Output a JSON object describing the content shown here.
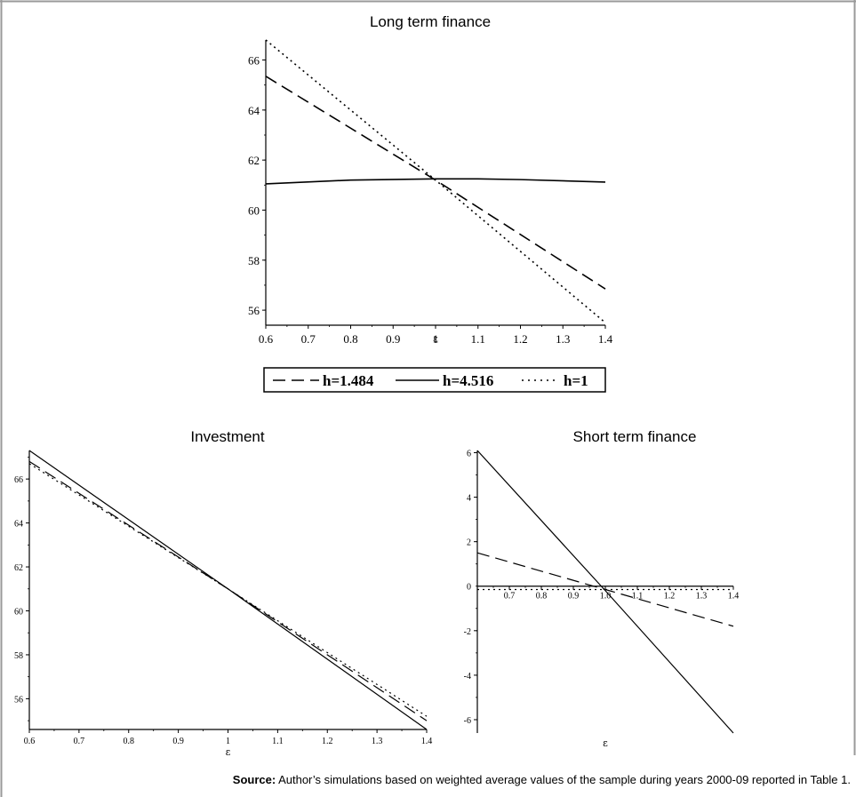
{
  "chart_data": [
    {
      "type": "line",
      "title": "Long term finance",
      "xlabel": "ε",
      "xlim": [
        0.6,
        1.4
      ],
      "ylim": [
        55.4,
        66.8
      ],
      "xticks": [
        0.6,
        0.7,
        0.8,
        0.9,
        1.0,
        1.1,
        1.2,
        1.3,
        1.4
      ],
      "xtick_labels": [
        "0.6",
        "0.7",
        "0.8",
        "0.9",
        "1",
        "1.1",
        "1.2",
        "1.3",
        "1.4"
      ],
      "yticks": [
        56,
        58,
        60,
        62,
        64,
        66
      ],
      "ytick_labels": [
        "56",
        "58",
        "60",
        "62",
        "64",
        "66"
      ],
      "series": [
        {
          "name": "h=1.484",
          "style": "dashed",
          "x": [
            0.6,
            1.0,
            1.4
          ],
          "y": [
            65.35,
            61.2,
            56.85
          ]
        },
        {
          "name": "h=4.516",
          "style": "solid",
          "x": [
            0.6,
            0.8,
            1.0,
            1.1,
            1.2,
            1.4
          ],
          "y": [
            61.05,
            61.2,
            61.25,
            61.25,
            61.22,
            61.12
          ]
        },
        {
          "name": "h=1",
          "style": "dotted",
          "x": [
            0.6,
            1.0,
            1.4
          ],
          "y": [
            66.8,
            61.2,
            55.5
          ]
        }
      ],
      "legend": {
        "position": "bottom",
        "entries": [
          "h=1.484",
          "h=4.516",
          "h=1"
        ]
      }
    },
    {
      "type": "line",
      "title": "Investment",
      "xlabel": "ε",
      "xlim": [
        0.6,
        1.4
      ],
      "ylim": [
        54.6,
        67.3
      ],
      "xticks": [
        0.6,
        0.7,
        0.8,
        0.9,
        1.0,
        1.1,
        1.2,
        1.3,
        1.4
      ],
      "xtick_labels": [
        "0.6",
        "0.7",
        "0.8",
        "0.9",
        "1",
        "1.1",
        "1.2",
        "1.3",
        "1.4"
      ],
      "yticks": [
        56,
        58,
        60,
        62,
        64,
        66
      ],
      "ytick_labels": [
        "56",
        "58",
        "60",
        "62",
        "64",
        "66"
      ],
      "series": [
        {
          "style": "solid",
          "x": [
            0.6,
            1.0,
            1.4
          ],
          "y": [
            67.3,
            61.0,
            54.6
          ]
        },
        {
          "style": "dashed",
          "x": [
            0.6,
            1.0,
            1.4
          ],
          "y": [
            66.8,
            61.0,
            55.0
          ]
        },
        {
          "style": "dotted",
          "x": [
            0.6,
            1.0,
            1.4
          ],
          "y": [
            66.7,
            61.0,
            55.2
          ]
        }
      ]
    },
    {
      "type": "line",
      "title": "Short term finance",
      "xlabel": "ε",
      "xlim": [
        0.6,
        1.4
      ],
      "ylim": [
        -6.6,
        6.1
      ],
      "xticks": [
        0.7,
        0.8,
        0.9,
        1.0,
        1.1,
        1.2,
        1.3,
        1.4
      ],
      "xtick_labels": [
        "0.7",
        "0.8",
        "0.9",
        "1.0",
        "1.1",
        "1.2",
        "1.3",
        "1.4"
      ],
      "yticks": [
        -6,
        -4,
        -2,
        2,
        4,
        6
      ],
      "ytick_labels": [
        "-6",
        "-4",
        "-2",
        "2",
        "4",
        "6"
      ],
      "zero_label": "0",
      "series": [
        {
          "style": "solid",
          "x": [
            0.6,
            1.0,
            1.4
          ],
          "y": [
            6.1,
            -0.2,
            -6.6
          ]
        },
        {
          "style": "dashed",
          "x": [
            0.6,
            1.0,
            1.4
          ],
          "y": [
            1.5,
            -0.15,
            -1.8
          ]
        },
        {
          "style": "dotted",
          "x": [
            0.6,
            1.4
          ],
          "y": [
            -0.15,
            -0.15
          ]
        }
      ]
    }
  ],
  "note": {
    "label": "Source:",
    "text": " Author’s simulations based on weighted average values of the sample during years 2000-09 reported in Table 1."
  }
}
